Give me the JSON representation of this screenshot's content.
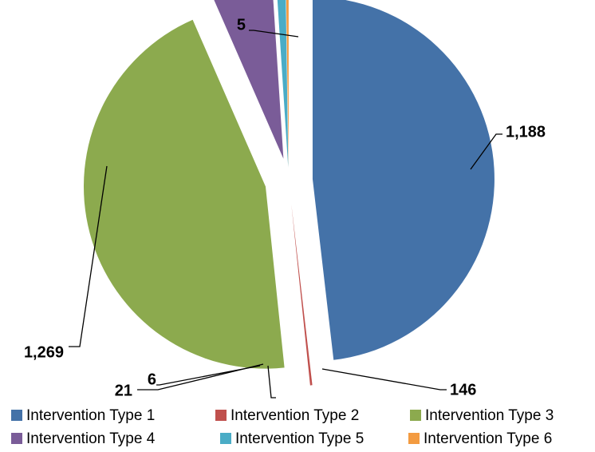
{
  "chart_data": {
    "type": "pie",
    "exploded": true,
    "start_angle_deg": 90,
    "categories": [
      "Intervention Type 1",
      "Intervention Type 2",
      "Intervention Type 3",
      "Intervention Type 4",
      "Intervention Type 5",
      "Intervention Type 6"
    ],
    "values": [
      1269,
      5,
      1188,
      146,
      21,
      6
    ],
    "data_labels": [
      "1,269",
      "5",
      "1,188",
      "146",
      "21",
      "6"
    ],
    "colors": [
      "#4472A8",
      "#C0504D",
      "#8CAA4E",
      "#7A5C98",
      "#4AACC6",
      "#F39B41"
    ],
    "legend_position": "bottom",
    "title": ""
  }
}
